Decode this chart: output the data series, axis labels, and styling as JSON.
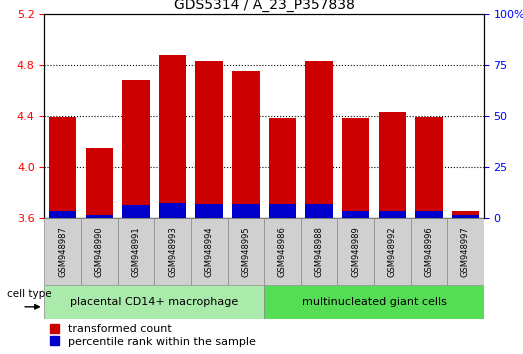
{
  "title": "GDS5314 / A_23_P357838",
  "samples": [
    "GSM948987",
    "GSM948990",
    "GSM948991",
    "GSM948993",
    "GSM948994",
    "GSM948995",
    "GSM948986",
    "GSM948988",
    "GSM948989",
    "GSM948992",
    "GSM948996",
    "GSM948997"
  ],
  "transformed_count": [
    4.39,
    4.15,
    4.68,
    4.88,
    4.83,
    4.75,
    4.38,
    4.83,
    4.38,
    4.43,
    4.39,
    3.65
  ],
  "percentile_rank_pct": [
    3.5,
    1.5,
    6.0,
    7.0,
    6.5,
    6.5,
    6.5,
    6.5,
    3.5,
    3.5,
    3.5,
    1.5
  ],
  "group1_count": 6,
  "group2_count": 6,
  "group1_label": "placental CD14+ macrophage",
  "group2_label": "multinucleated giant cells",
  "cell_type_label": "cell type",
  "legend1": "transformed count",
  "legend2": "percentile rank within the sample",
  "ylim_left": [
    3.6,
    5.2
  ],
  "ylim_right": [
    0,
    100
  ],
  "yticks_left": [
    3.6,
    4.0,
    4.4,
    4.8,
    5.2
  ],
  "yticks_right": [
    0,
    25,
    50,
    75,
    100
  ],
  "bar_color_red": "#cc0000",
  "bar_color_blue": "#0000cc",
  "group1_bg": "#aaeaaa",
  "group2_bg": "#55dd55",
  "bar_width": 0.75,
  "base_value": 3.6
}
